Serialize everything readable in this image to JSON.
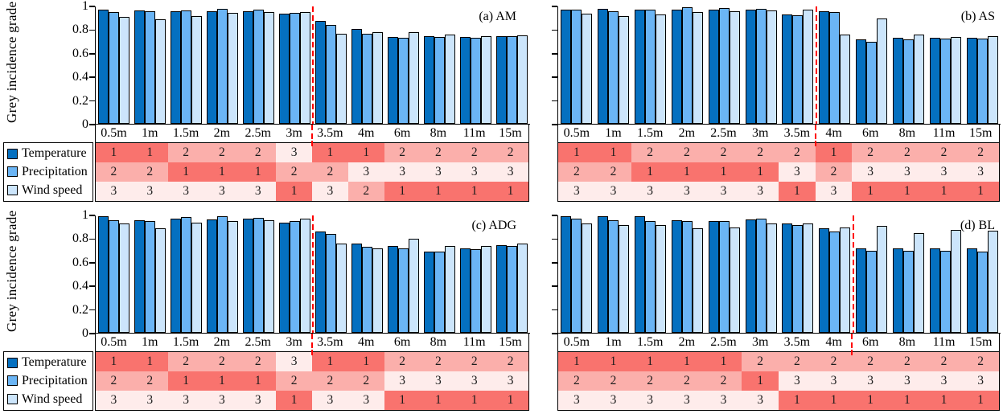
{
  "figure": {
    "ylabel": "Grey incidence grade",
    "yticks": [
      "1",
      "0.8",
      "0.6",
      "0.4",
      "0.2",
      "0"
    ],
    "categories": [
      "0.5m",
      "1m",
      "1.5m",
      "2m",
      "2.5m",
      "3m",
      "3.5m",
      "4m",
      "6m",
      "8m",
      "11m",
      "15m"
    ],
    "legend": [
      {
        "label": "Temperature",
        "color": "#0570C0"
      },
      {
        "label": "Precipitation",
        "color": "#6BB5F5"
      },
      {
        "label": "Wind speed",
        "color": "#CCE5FB"
      }
    ],
    "rank_colors": {
      "1": "#F9736E",
      "2": "#FBAFAB",
      "3": "#FEECEB"
    },
    "split_line_color": "#FF0000",
    "bar_outline_color": "#000000"
  },
  "chart_data": [
    {
      "type": "bar",
      "title": "(a) AM",
      "ylabel": "Grey incidence grade",
      "ylim": [
        0,
        1
      ],
      "categories": [
        "0.5m",
        "1m",
        "1.5m",
        "2m",
        "2.5m",
        "3m",
        "3.5m",
        "4m",
        "6m",
        "8m",
        "11m",
        "15m"
      ],
      "series": [
        {
          "name": "Temperature",
          "values": [
            0.97,
            0.965,
            0.96,
            0.96,
            0.96,
            0.94,
            0.88,
            0.81,
            0.74,
            0.75,
            0.74,
            0.75
          ]
        },
        {
          "name": "Precipitation",
          "values": [
            0.95,
            0.96,
            0.965,
            0.98,
            0.97,
            0.945,
            0.84,
            0.77,
            0.73,
            0.74,
            0.735,
            0.745
          ]
        },
        {
          "name": "Wind speed",
          "values": [
            0.91,
            0.89,
            0.92,
            0.945,
            0.95,
            0.95,
            0.77,
            0.78,
            0.78,
            0.76,
            0.75,
            0.755
          ]
        }
      ],
      "split_after_index": 5,
      "ranks": {
        "Temperature": [
          1,
          1,
          2,
          2,
          2,
          3,
          1,
          1,
          2,
          2,
          2,
          2
        ],
        "Precipitation": [
          2,
          2,
          1,
          1,
          1,
          2,
          2,
          3,
          3,
          3,
          3,
          3
        ],
        "Wind speed": [
          3,
          3,
          3,
          3,
          3,
          1,
          3,
          2,
          1,
          1,
          1,
          1
        ]
      }
    },
    {
      "type": "bar",
      "title": "(b) AS",
      "ylim": [
        0,
        1
      ],
      "categories": [
        "0.5m",
        "1m",
        "1.5m",
        "2m",
        "2.5m",
        "3m",
        "3.5m",
        "4m",
        "6m",
        "8m",
        "11m",
        "15m"
      ],
      "series": [
        {
          "name": "Temperature",
          "values": [
            0.975,
            0.98,
            0.97,
            0.97,
            0.97,
            0.97,
            0.93,
            0.96,
            0.72,
            0.73,
            0.73,
            0.73
          ]
        },
        {
          "name": "Precipitation",
          "values": [
            0.97,
            0.96,
            0.975,
            0.99,
            0.985,
            0.98,
            0.925,
            0.95,
            0.7,
            0.72,
            0.725,
            0.725
          ]
        },
        {
          "name": "Wind speed",
          "values": [
            0.94,
            0.92,
            0.93,
            0.95,
            0.96,
            0.965,
            0.975,
            0.76,
            0.9,
            0.76,
            0.74,
            0.75
          ]
        }
      ],
      "split_after_index": 6,
      "ranks": {
        "Temperature": [
          1,
          1,
          2,
          2,
          2,
          2,
          2,
          1,
          2,
          2,
          2,
          2
        ],
        "Precipitation": [
          2,
          2,
          1,
          1,
          1,
          1,
          3,
          2,
          3,
          3,
          3,
          3
        ],
        "Wind speed": [
          3,
          3,
          3,
          3,
          3,
          3,
          1,
          3,
          1,
          1,
          1,
          1
        ]
      }
    },
    {
      "type": "bar",
      "title": "(c) ADG",
      "ylabel": "Grey incidence grade",
      "ylim": [
        0,
        1
      ],
      "categories": [
        "0.5m",
        "1m",
        "1.5m",
        "2m",
        "2.5m",
        "3m",
        "3.5m",
        "4m",
        "6m",
        "8m",
        "11m",
        "15m"
      ],
      "series": [
        {
          "name": "Temperature",
          "values": [
            0.99,
            0.96,
            0.97,
            0.965,
            0.97,
            0.94,
            0.86,
            0.76,
            0.74,
            0.695,
            0.72,
            0.75
          ]
        },
        {
          "name": "Precipitation",
          "values": [
            0.96,
            0.955,
            0.985,
            0.99,
            0.98,
            0.95,
            0.84,
            0.73,
            0.72,
            0.69,
            0.71,
            0.74
          ]
        },
        {
          "name": "Wind speed",
          "values": [
            0.93,
            0.89,
            0.94,
            0.955,
            0.96,
            0.97,
            0.76,
            0.72,
            0.8,
            0.74,
            0.74,
            0.76
          ]
        }
      ],
      "split_after_index": 5,
      "ranks": {
        "Temperature": [
          1,
          1,
          2,
          2,
          2,
          3,
          1,
          1,
          2,
          2,
          2,
          2
        ],
        "Precipitation": [
          2,
          2,
          1,
          1,
          1,
          2,
          2,
          2,
          3,
          3,
          3,
          3
        ],
        "Wind speed": [
          3,
          3,
          3,
          3,
          3,
          1,
          3,
          3,
          1,
          1,
          1,
          1
        ]
      }
    },
    {
      "type": "bar",
      "title": "(d) BL",
      "ylim": [
        0,
        1
      ],
      "categories": [
        "0.5m",
        "1m",
        "1.5m",
        "2m",
        "2.5m",
        "3m",
        "3.5m",
        "4m",
        "6m",
        "8m",
        "11m",
        "15m"
      ],
      "series": [
        {
          "name": "Temperature",
          "values": [
            0.99,
            0.99,
            0.99,
            0.96,
            0.955,
            0.965,
            0.93,
            0.89,
            0.72,
            0.72,
            0.72,
            0.72
          ]
        },
        {
          "name": "Precipitation",
          "values": [
            0.97,
            0.96,
            0.955,
            0.95,
            0.95,
            0.97,
            0.92,
            0.865,
            0.7,
            0.7,
            0.7,
            0.69
          ]
        },
        {
          "name": "Wind speed",
          "values": [
            0.93,
            0.92,
            0.92,
            0.89,
            0.9,
            0.93,
            0.935,
            0.895,
            0.91,
            0.85,
            0.88,
            0.87
          ]
        }
      ],
      "split_after_index": 7,
      "ranks": {
        "Temperature": [
          1,
          1,
          1,
          1,
          1,
          2,
          2,
          2,
          2,
          2,
          2,
          2
        ],
        "Precipitation": [
          2,
          2,
          2,
          2,
          2,
          1,
          3,
          3,
          3,
          3,
          3,
          3
        ],
        "Wind speed": [
          3,
          3,
          3,
          3,
          3,
          3,
          1,
          1,
          1,
          1,
          1,
          1
        ]
      }
    }
  ]
}
